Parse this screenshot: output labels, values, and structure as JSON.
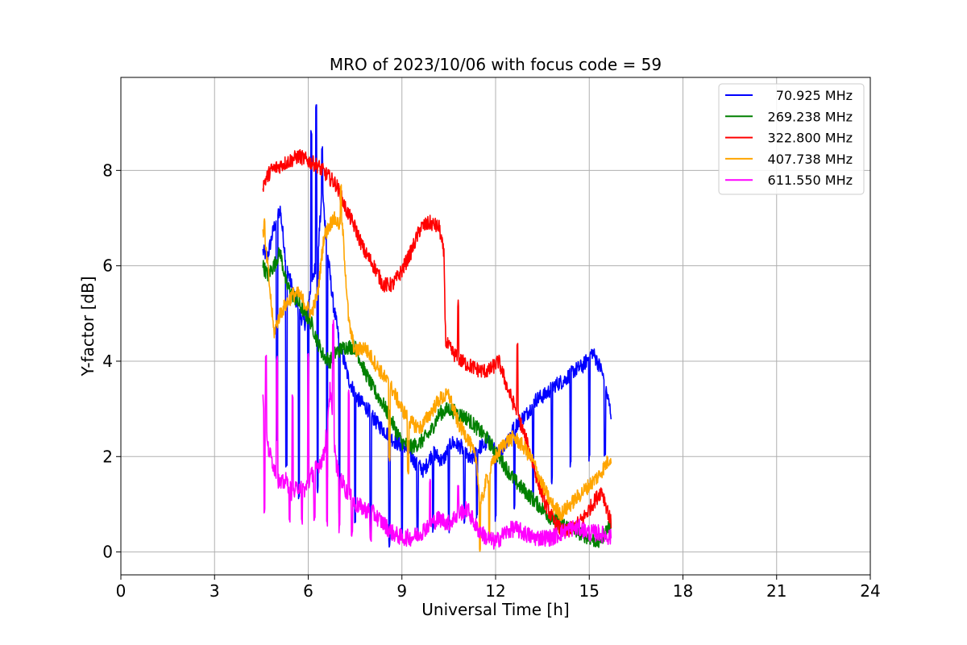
{
  "chart_data": {
    "type": "line",
    "title": "MRO of 2023/10/06 with focus code = 59",
    "xlabel": "Universal Time [h]",
    "ylabel": "Y-factor [dB]",
    "xlim": [
      0,
      24
    ],
    "ylim": [
      -0.48,
      9.95
    ],
    "xticks": [
      0,
      3,
      6,
      9,
      12,
      15,
      18,
      21,
      24
    ],
    "yticks": [
      0,
      2,
      4,
      6,
      8
    ],
    "grid": true,
    "legend_position": "top-right",
    "series": [
      {
        "name": "70.925 MHz",
        "color": "#0000ff",
        "x": [
          4.55,
          4.7,
          4.9,
          5.1,
          5.3,
          5.5,
          5.7,
          5.9,
          6.1,
          6.3,
          6.45,
          6.6,
          6.8,
          7.0,
          7.3,
          7.6,
          7.9,
          8.2,
          8.5,
          8.8,
          9.1,
          9.4,
          9.7,
          10.0,
          10.3,
          10.6,
          10.9,
          11.2,
          11.5,
          11.8,
          12.1,
          12.4,
          12.7,
          13.0,
          13.3,
          13.6,
          13.9,
          14.2,
          14.5,
          14.8,
          15.1,
          15.4,
          15.7
        ],
        "y": [
          6.3,
          6.2,
          6.8,
          7.2,
          6.0,
          5.5,
          5.0,
          4.8,
          5.6,
          6.2,
          7.6,
          6.4,
          5.2,
          4.4,
          3.6,
          3.2,
          3.0,
          2.7,
          2.5,
          2.3,
          2.2,
          1.9,
          1.7,
          2.1,
          1.9,
          2.3,
          2.2,
          1.9,
          2.2,
          2.3,
          2.0,
          2.4,
          2.7,
          2.9,
          3.2,
          3.3,
          3.5,
          3.6,
          3.8,
          3.9,
          4.2,
          3.8,
          2.9
        ],
        "spikes_down": [
          [
            5.0,
            2.4
          ],
          [
            5.3,
            1.8
          ],
          [
            5.7,
            1.2
          ],
          [
            6.0,
            2.2
          ],
          [
            6.3,
            1.3
          ],
          [
            6.6,
            1.6
          ],
          [
            7.0,
            0.8
          ],
          [
            7.5,
            0.6
          ],
          [
            8.0,
            0.3
          ],
          [
            8.6,
            0.2
          ],
          [
            9.0,
            0.3
          ],
          [
            9.5,
            0.4
          ],
          [
            10.0,
            0.5
          ],
          [
            10.5,
            0.5
          ],
          [
            11.0,
            0.7
          ],
          [
            11.4,
            0.8
          ],
          [
            12.0,
            0.7
          ],
          [
            12.6,
            0.9
          ],
          [
            13.2,
            1.2
          ],
          [
            13.8,
            1.5
          ],
          [
            14.4,
            1.8
          ],
          [
            15.0,
            2.0
          ],
          [
            15.5,
            2.1
          ]
        ],
        "spikes_up": [
          [
            6.25,
            9.4
          ],
          [
            6.45,
            8.6
          ],
          [
            6.1,
            8.9
          ]
        ]
      },
      {
        "name": "269.238 MHz",
        "color": "#008000",
        "x": [
          4.55,
          4.7,
          4.9,
          5.1,
          5.3,
          5.5,
          5.7,
          5.9,
          6.1,
          6.3,
          6.5,
          6.7,
          6.9,
          7.2,
          7.5,
          7.8,
          8.1,
          8.4,
          8.7,
          9.0,
          9.3,
          9.6,
          9.9,
          10.2,
          10.5,
          10.8,
          11.1,
          11.4,
          11.7,
          12.0,
          12.3,
          12.6,
          12.9,
          13.2,
          13.5,
          13.8,
          14.1,
          14.4,
          14.7,
          15.0,
          15.3,
          15.7
        ],
        "y": [
          6.0,
          5.8,
          6.0,
          6.3,
          5.6,
          5.4,
          5.2,
          5.0,
          4.8,
          4.4,
          4.1,
          4.0,
          4.2,
          4.3,
          4.3,
          3.8,
          3.4,
          3.1,
          2.7,
          2.3,
          2.2,
          2.3,
          2.5,
          2.9,
          3.0,
          2.9,
          2.8,
          2.6,
          2.4,
          2.1,
          1.8,
          1.5,
          1.3,
          1.1,
          0.9,
          0.7,
          0.6,
          0.5,
          0.4,
          0.3,
          0.2,
          0.6
        ],
        "spikes_down": [],
        "spikes_up": []
      },
      {
        "name": "322.800 MHz",
        "color": "#ff0000",
        "x": [
          4.55,
          4.8,
          5.1,
          5.4,
          5.7,
          6.0,
          6.3,
          6.6,
          6.9,
          7.2,
          7.5,
          7.8,
          8.1,
          8.4,
          8.7,
          9.0,
          9.3,
          9.6,
          9.9,
          10.2,
          10.35,
          10.4,
          10.6,
          10.9,
          11.2,
          11.5,
          11.8,
          12.1,
          12.4,
          12.7,
          13.0,
          13.3,
          13.6,
          13.9,
          14.2,
          14.5,
          14.8,
          15.1,
          15.4,
          15.7
        ],
        "y": [
          7.7,
          8.0,
          8.1,
          8.2,
          8.3,
          8.2,
          8.1,
          7.9,
          7.7,
          7.2,
          6.8,
          6.3,
          6.0,
          5.6,
          5.6,
          5.9,
          6.3,
          6.8,
          6.9,
          6.8,
          6.2,
          4.4,
          4.2,
          4.0,
          3.9,
          3.8,
          3.8,
          4.0,
          3.4,
          2.9,
          2.3,
          1.6,
          1.0,
          0.6,
          0.4,
          0.5,
          0.7,
          1.0,
          1.3,
          0.6
        ],
        "spikes_down": [],
        "spikes_up": [
          [
            10.8,
            5.3
          ],
          [
            12.7,
            4.5
          ]
        ]
      },
      {
        "name": "407.738 MHz",
        "color": "#ffa500",
        "x": [
          4.55,
          4.7,
          4.9,
          5.1,
          5.3,
          5.5,
          5.7,
          5.9,
          6.1,
          6.3,
          6.5,
          6.8,
          7.1,
          7.3,
          7.5,
          7.8,
          8.1,
          8.4,
          8.7,
          9.0,
          9.3,
          9.6,
          9.9,
          10.2,
          10.5,
          10.8,
          11.1,
          11.4,
          11.5,
          11.7,
          12.0,
          12.3,
          12.6,
          12.9,
          13.2,
          13.5,
          13.8,
          14.1,
          14.4,
          14.7,
          15.0,
          15.3,
          15.7
        ],
        "y": [
          6.8,
          6.0,
          4.6,
          5.0,
          5.2,
          5.4,
          5.4,
          5.2,
          5.0,
          5.4,
          6.6,
          7.0,
          6.8,
          4.8,
          4.2,
          4.3,
          4.0,
          3.7,
          3.4,
          3.0,
          2.7,
          2.6,
          2.9,
          3.2,
          3.3,
          2.7,
          2.4,
          1.9,
          0.9,
          1.5,
          2.0,
          2.3,
          2.4,
          2.2,
          1.9,
          1.4,
          1.0,
          0.8,
          1.0,
          1.2,
          1.4,
          1.6,
          2.0
        ],
        "spikes_down": [
          [
            8.6,
            2.0
          ],
          [
            9.2,
            1.7
          ],
          [
            11.5,
            0.1
          ],
          [
            11.8,
            0.3
          ]
        ],
        "spikes_up": [
          [
            7.05,
            7.8
          ],
          [
            4.6,
            7.1
          ]
        ]
      },
      {
        "name": "611.550 MHz",
        "color": "#ff00ff",
        "x": [
          4.55,
          4.7,
          4.9,
          5.1,
          5.3,
          5.5,
          5.7,
          5.9,
          6.1,
          6.3,
          6.5,
          6.7,
          6.9,
          7.2,
          7.5,
          7.8,
          8.1,
          8.4,
          8.7,
          9.0,
          9.3,
          9.6,
          9.9,
          10.2,
          10.5,
          10.8,
          11.1,
          11.4,
          11.7,
          12.0,
          12.3,
          12.6,
          12.9,
          13.2,
          13.5,
          13.8,
          14.1,
          14.4,
          14.7,
          15.0,
          15.3,
          15.7
        ],
        "y": [
          3.2,
          2.2,
          1.8,
          1.4,
          1.5,
          1.2,
          1.4,
          1.3,
          1.6,
          1.8,
          2.0,
          3.4,
          1.8,
          1.3,
          1.0,
          0.9,
          0.8,
          0.6,
          0.4,
          0.3,
          0.3,
          0.4,
          0.6,
          0.7,
          0.6,
          0.8,
          0.9,
          0.5,
          0.3,
          0.2,
          0.4,
          0.5,
          0.4,
          0.3,
          0.3,
          0.3,
          0.4,
          0.5,
          0.5,
          0.4,
          0.4,
          0.3
        ],
        "spikes_down": [
          [
            4.6,
            0.9
          ],
          [
            5.0,
            0.5
          ],
          [
            5.4,
            0.6
          ],
          [
            5.8,
            0.6
          ],
          [
            6.2,
            0.7
          ],
          [
            6.6,
            0.6
          ],
          [
            7.0,
            0.5
          ],
          [
            7.4,
            0.4
          ],
          [
            8.0,
            0.3
          ]
        ],
        "spikes_up": [
          [
            4.65,
            4.2
          ],
          [
            5.0,
            4.1
          ],
          [
            5.5,
            3.3
          ],
          [
            6.0,
            4.2
          ],
          [
            6.8,
            4.9
          ],
          [
            7.3,
            3.4
          ],
          [
            9.9,
            1.6
          ],
          [
            10.8,
            1.5
          ]
        ]
      }
    ]
  }
}
